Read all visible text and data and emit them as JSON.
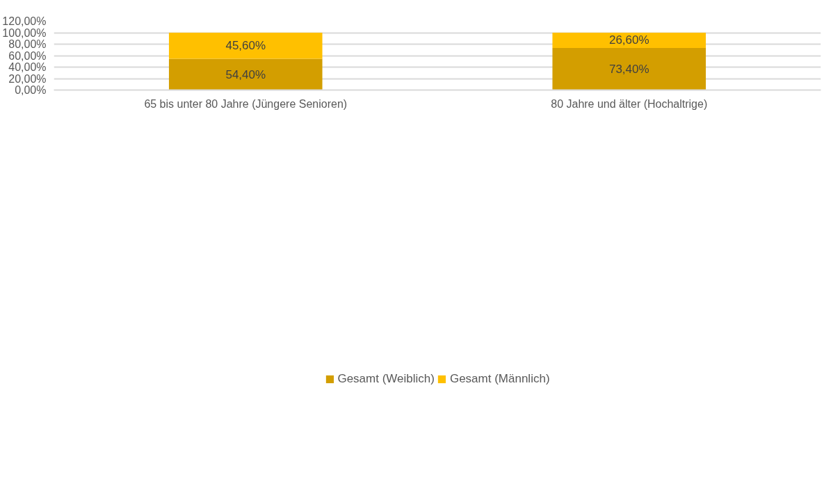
{
  "chart_data": {
    "type": "bar",
    "stacked": true,
    "categories": [
      "65 bis unter 80 Jahre (Jüngere Senioren)",
      "80 Jahre und älter (Hochaltrige)"
    ],
    "series": [
      {
        "name": "Gesamt (Weiblich)",
        "color": "#d39e00",
        "values": [
          54.4,
          73.4
        ],
        "value_labels": [
          "54,40%",
          "73,40%"
        ]
      },
      {
        "name": "Gesamt (Männlich)",
        "color": "#ffc000",
        "values": [
          45.6,
          26.6
        ],
        "value_labels": [
          "45,60%",
          "26,60%"
        ]
      }
    ],
    "ylim": [
      0,
      120
    ],
    "yticks": [
      {
        "value": 0,
        "label": "0,00%"
      },
      {
        "value": 20,
        "label": "20,00%"
      },
      {
        "value": 40,
        "label": "40,00%"
      },
      {
        "value": 60,
        "label": "60,00%"
      },
      {
        "value": 80,
        "label": "80,00%"
      },
      {
        "value": 100,
        "label": "100,00%"
      },
      {
        "value": 120,
        "label": "120,00%"
      }
    ],
    "grid": "y",
    "legend": "bottom"
  }
}
